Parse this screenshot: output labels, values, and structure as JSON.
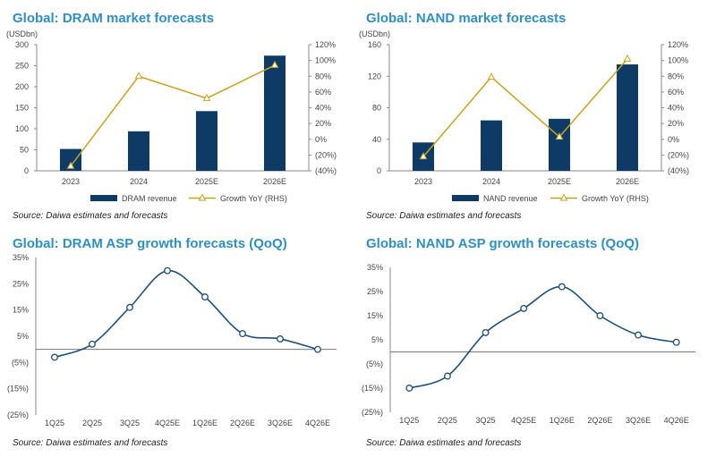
{
  "colors": {
    "title": "#2f8fc5",
    "bar": "#0e3a66",
    "growth_line": "#c8a21e",
    "asp_line": "#1c4f7a"
  },
  "chart_data": [
    {
      "id": "dram-market",
      "type": "bar",
      "title": "Global: DRAM market forecasts",
      "ylabel": "(USDbn)",
      "categories": [
        "2023",
        "2024",
        "2025E",
        "2026E"
      ],
      "series": [
        {
          "name": "DRAM revenue",
          "type": "bar",
          "axis": "left",
          "values": [
            52,
            94,
            142,
            274
          ]
        },
        {
          "name": "Growth YoY (RHS)",
          "type": "line",
          "axis": "right",
          "values": [
            -34,
            80,
            52,
            94
          ]
        }
      ],
      "ylim": [
        0,
        300
      ],
      "yticks": [
        "0",
        "50",
        "100",
        "150",
        "200",
        "250",
        "300"
      ],
      "y2lim": [
        -40,
        120
      ],
      "y2ticks": [
        "(40%)",
        "(20%)",
        "0%",
        "20%",
        "40%",
        "60%",
        "80%",
        "100%",
        "120%"
      ],
      "legend": [
        "DRAM revenue",
        "Growth YoY (RHS)"
      ],
      "source": "Source: Daiwa estimates and forecasts"
    },
    {
      "id": "nand-market",
      "type": "bar",
      "title": "Global: NAND market forecasts",
      "ylabel": "(USDbn)",
      "categories": [
        "2023",
        "2024",
        "2025E",
        "2026E"
      ],
      "series": [
        {
          "name": "NAND revenue",
          "type": "bar",
          "axis": "left",
          "values": [
            36,
            64,
            66,
            135
          ]
        },
        {
          "name": "Growth YoY (RHS)",
          "type": "line",
          "axis": "right",
          "values": [
            -22,
            79,
            3,
            102
          ]
        }
      ],
      "ylim": [
        0,
        160
      ],
      "yticks": [
        "0",
        "40",
        "80",
        "120",
        "160"
      ],
      "y2lim": [
        -40,
        120
      ],
      "y2ticks": [
        "(40%)",
        "(20%)",
        "0%",
        "20%",
        "40%",
        "60%",
        "80%",
        "100%",
        "120%"
      ],
      "legend": [
        "NAND revenue",
        "Growth YoY (RHS)"
      ],
      "source": "Source: Daiwa estimates and forecasts"
    },
    {
      "id": "dram-asp",
      "type": "line",
      "title": "Global: DRAM ASP growth forecasts (QoQ)",
      "categories": [
        "1Q25",
        "2Q25",
        "3Q25",
        "4Q25E",
        "1Q26E",
        "2Q26E",
        "3Q26E",
        "4Q26E"
      ],
      "series": [
        {
          "name": "DRAM ASP growth QoQ",
          "values": [
            -3,
            2,
            16,
            30,
            20,
            6,
            4,
            0
          ]
        }
      ],
      "ylim": [
        -25,
        35
      ],
      "yticks": [
        "(25%)",
        "(15%)",
        "(5%)",
        "5%",
        "15%",
        "25%",
        "35%"
      ],
      "source": "Source: Daiwa estimates and forecasts"
    },
    {
      "id": "nand-asp",
      "type": "line",
      "title": "Global: NAND ASP growth forecasts  (QoQ)",
      "categories": [
        "1Q25",
        "2Q25",
        "3Q25",
        "4Q25E",
        "1Q26E",
        "2Q26E",
        "3Q26E",
        "4Q26E"
      ],
      "series": [
        {
          "name": "NAND ASP growth QoQ",
          "values": [
            -15,
            -10,
            8,
            18,
            27,
            15,
            7,
            4
          ]
        }
      ],
      "ylim": [
        -25,
        35
      ],
      "yticks": [
        "(25%)",
        "(15%)",
        "(5%)",
        "5%",
        "15%",
        "25%",
        "35%"
      ],
      "source": "Source: Daiwa estimates and forecasts"
    }
  ]
}
